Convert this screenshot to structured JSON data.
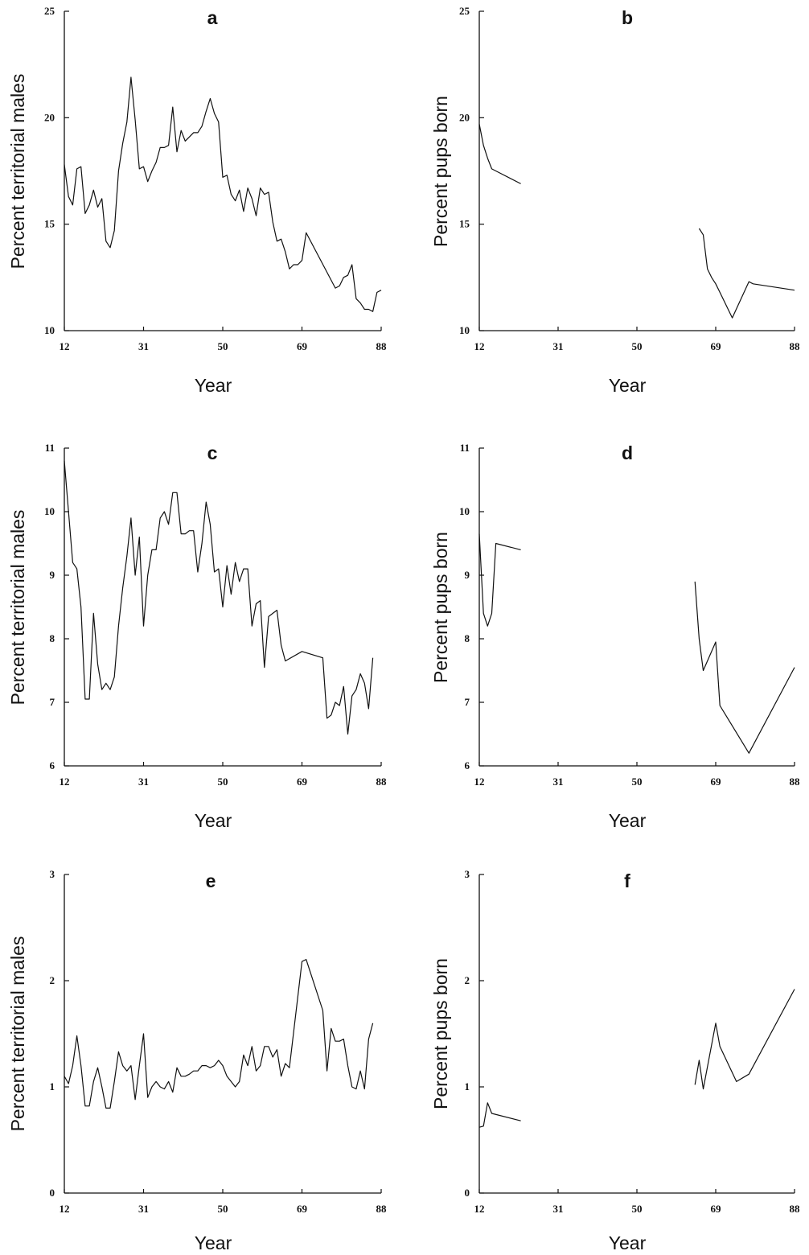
{
  "chart_data": [
    {
      "id": "a",
      "type": "line",
      "title": "a",
      "xlabel": "Year",
      "ylabel": "Percent territorial males",
      "xlim": [
        12,
        88
      ],
      "ylim": [
        10,
        25
      ],
      "xticks": [
        "12",
        "31",
        "50",
        "69",
        "88"
      ],
      "yticks": [
        "10",
        "15",
        "20",
        "25"
      ],
      "series": [
        {
          "values": [
            [
              12,
              17.8
            ],
            [
              13,
              16.3
            ],
            [
              14,
              15.9
            ],
            [
              15,
              17.6
            ],
            [
              16,
              17.7
            ],
            [
              17,
              15.5
            ],
            [
              18,
              15.9
            ],
            [
              19,
              16.6
            ],
            [
              20,
              15.8
            ],
            [
              21,
              16.2
            ],
            [
              22,
              14.2
            ],
            [
              23,
              13.9
            ],
            [
              24,
              14.7
            ],
            [
              25,
              17.5
            ],
            [
              26,
              18.8
            ],
            [
              27,
              19.8
            ],
            [
              28,
              21.9
            ],
            [
              29,
              19.9
            ],
            [
              30,
              17.6
            ],
            [
              31,
              17.7
            ],
            [
              32,
              17.0
            ],
            [
              33,
              17.5
            ],
            [
              34,
              17.9
            ],
            [
              35,
              18.6
            ],
            [
              36,
              18.6
            ],
            [
              37,
              18.7
            ],
            [
              38,
              20.5
            ],
            [
              39,
              18.4
            ],
            [
              40,
              19.4
            ],
            [
              41,
              18.9
            ],
            [
              42,
              19.1
            ],
            [
              43,
              19.3
            ],
            [
              44,
              19.3
            ],
            [
              45,
              19.6
            ],
            [
              46,
              20.3
            ],
            [
              47,
              20.9
            ],
            [
              48,
              20.2
            ],
            [
              49,
              19.8
            ],
            [
              50,
              17.2
            ],
            [
              51,
              17.3
            ],
            [
              52,
              16.4
            ],
            [
              53,
              16.1
            ],
            [
              54,
              16.6
            ],
            [
              55,
              15.6
            ],
            [
              56,
              16.7
            ],
            [
              57,
              16.2
            ],
            [
              58,
              15.4
            ],
            [
              59,
              16.7
            ],
            [
              60,
              16.4
            ],
            [
              61,
              16.5
            ],
            [
              62,
              15.1
            ],
            [
              63,
              14.2
            ],
            [
              64,
              14.3
            ],
            [
              65,
              13.7
            ],
            [
              66,
              12.9
            ],
            [
              67,
              13.1
            ],
            [
              68,
              13.1
            ],
            [
              69,
              13.3
            ],
            [
              70,
              14.6
            ],
            [
              77,
              12.0
            ],
            [
              78,
              12.1
            ],
            [
              79,
              12.5
            ],
            [
              80,
              12.6
            ],
            [
              81,
              13.1
            ],
            [
              82,
              11.5
            ],
            [
              83,
              11.3
            ],
            [
              84,
              11.0
            ],
            [
              85,
              11.0
            ],
            [
              86,
              10.9
            ],
            [
              87,
              11.8
            ],
            [
              88,
              11.9
            ]
          ]
        }
      ]
    },
    {
      "id": "b",
      "type": "line",
      "title": "b",
      "xlabel": "Year",
      "ylabel": "Percent pups born",
      "xlim": [
        12,
        88
      ],
      "ylim": [
        10,
        25
      ],
      "xticks": [
        "12",
        "31",
        "50",
        "69",
        "88"
      ],
      "yticks": [
        "10",
        "15",
        "20",
        "25"
      ],
      "series": [
        {
          "segments": [
            [
              [
                12,
                19.7
              ],
              [
                13,
                18.7
              ],
              [
                14,
                18.1
              ],
              [
                15,
                17.6
              ],
              [
                16,
                17.5
              ],
              [
                22,
                16.9
              ]
            ],
            [
              [
                65,
                14.8
              ],
              [
                66,
                14.5
              ],
              [
                67,
                12.9
              ],
              [
                68,
                12.5
              ],
              [
                69,
                12.2
              ],
              [
                70,
                11.8
              ],
              [
                73,
                10.6
              ],
              [
                77,
                12.3
              ],
              [
                78,
                12.2
              ],
              [
                88,
                11.9
              ]
            ]
          ]
        }
      ]
    },
    {
      "id": "c",
      "type": "line",
      "title": "c",
      "xlabel": "Year",
      "ylabel": "Percent territorial males",
      "xlim": [
        12,
        88
      ],
      "ylim": [
        6,
        11
      ],
      "xticks": [
        "12",
        "31",
        "50",
        "69",
        "88"
      ],
      "yticks": [
        "6",
        "7",
        "8",
        "9",
        "10",
        "11"
      ],
      "series": [
        {
          "values": [
            [
              12,
              10.8
            ],
            [
              13,
              10.0
            ],
            [
              14,
              9.2
            ],
            [
              15,
              9.1
            ],
            [
              16,
              8.5
            ],
            [
              17,
              7.05
            ],
            [
              18,
              7.05
            ],
            [
              19,
              8.4
            ],
            [
              20,
              7.6
            ],
            [
              21,
              7.2
            ],
            [
              22,
              7.3
            ],
            [
              23,
              7.2
            ],
            [
              24,
              7.4
            ],
            [
              25,
              8.2
            ],
            [
              26,
              8.8
            ],
            [
              27,
              9.3
            ],
            [
              28,
              9.9
            ],
            [
              29,
              9.0
            ],
            [
              30,
              9.6
            ],
            [
              31,
              8.2
            ],
            [
              32,
              9.0
            ],
            [
              33,
              9.4
            ],
            [
              34,
              9.4
            ],
            [
              35,
              9.9
            ],
            [
              36,
              10.0
            ],
            [
              37,
              9.8
            ],
            [
              38,
              10.3
            ],
            [
              39,
              10.3
            ],
            [
              40,
              9.65
            ],
            [
              41,
              9.65
            ],
            [
              42,
              9.7
            ],
            [
              43,
              9.7
            ],
            [
              44,
              9.05
            ],
            [
              45,
              9.5
            ],
            [
              46,
              10.15
            ],
            [
              47,
              9.8
            ],
            [
              48,
              9.05
            ],
            [
              49,
              9.1
            ],
            [
              50,
              8.5
            ],
            [
              51,
              9.15
            ],
            [
              52,
              8.7
            ],
            [
              53,
              9.2
            ],
            [
              54,
              8.9
            ],
            [
              55,
              9.1
            ],
            [
              56,
              9.1
            ],
            [
              57,
              8.2
            ],
            [
              58,
              8.55
            ],
            [
              59,
              8.6
            ],
            [
              60,
              7.55
            ],
            [
              61,
              8.35
            ],
            [
              62,
              8.4
            ],
            [
              63,
              8.45
            ],
            [
              64,
              7.9
            ],
            [
              65,
              7.65
            ],
            [
              69,
              7.8
            ],
            [
              74,
              7.7
            ],
            [
              75,
              6.75
            ],
            [
              76,
              6.8
            ],
            [
              77,
              7.0
            ],
            [
              78,
              6.95
            ],
            [
              79,
              7.25
            ],
            [
              80,
              6.5
            ],
            [
              81,
              7.1
            ],
            [
              82,
              7.2
            ],
            [
              83,
              7.45
            ],
            [
              84,
              7.3
            ],
            [
              85,
              6.9
            ],
            [
              86,
              7.7
            ]
          ]
        }
      ]
    },
    {
      "id": "d",
      "type": "line",
      "title": "d",
      "xlabel": "Year",
      "ylabel": "Percent pups born",
      "xlim": [
        12,
        88
      ],
      "ylim": [
        6,
        11
      ],
      "xticks": [
        "12",
        "31",
        "50",
        "69",
        "88"
      ],
      "yticks": [
        "6",
        "7",
        "8",
        "9",
        "10",
        "11"
      ],
      "series": [
        {
          "segments": [
            [
              [
                12,
                9.65
              ],
              [
                13,
                8.4
              ],
              [
                14,
                8.2
              ],
              [
                15,
                8.4
              ],
              [
                16,
                9.5
              ],
              [
                22,
                9.4
              ]
            ],
            [
              [
                64,
                8.9
              ],
              [
                65,
                8.0
              ],
              [
                66,
                7.5
              ],
              [
                69,
                7.95
              ],
              [
                70,
                6.95
              ],
              [
                77,
                6.2
              ],
              [
                88,
                7.55
              ]
            ]
          ]
        }
      ]
    },
    {
      "id": "e",
      "type": "line",
      "title": "e",
      "xlabel": "Year",
      "ylabel": "Percent territorial males",
      "xlim": [
        12,
        88
      ],
      "ylim": [
        0,
        3
      ],
      "xticks": [
        "12",
        "31",
        "50",
        "69",
        "88"
      ],
      "yticks": [
        "0",
        "1",
        "2",
        "3"
      ],
      "series": [
        {
          "values": [
            [
              12,
              1.1
            ],
            [
              13,
              1.03
            ],
            [
              14,
              1.2
            ],
            [
              15,
              1.48
            ],
            [
              16,
              1.2
            ],
            [
              17,
              0.82
            ],
            [
              18,
              0.82
            ],
            [
              19,
              1.05
            ],
            [
              20,
              1.18
            ],
            [
              21,
              1.0
            ],
            [
              22,
              0.8
            ],
            [
              23,
              0.8
            ],
            [
              24,
              1.05
            ],
            [
              25,
              1.33
            ],
            [
              26,
              1.2
            ],
            [
              27,
              1.15
            ],
            [
              28,
              1.2
            ],
            [
              29,
              0.88
            ],
            [
              30,
              1.2
            ],
            [
              31,
              1.5
            ],
            [
              32,
              0.9
            ],
            [
              33,
              1.0
            ],
            [
              34,
              1.05
            ],
            [
              35,
              1.0
            ],
            [
              36,
              0.98
            ],
            [
              37,
              1.05
            ],
            [
              38,
              0.95
            ],
            [
              39,
              1.18
            ],
            [
              40,
              1.1
            ],
            [
              41,
              1.1
            ],
            [
              42,
              1.12
            ],
            [
              43,
              1.15
            ],
            [
              44,
              1.15
            ],
            [
              45,
              1.2
            ],
            [
              46,
              1.2
            ],
            [
              47,
              1.18
            ],
            [
              48,
              1.2
            ],
            [
              49,
              1.25
            ],
            [
              50,
              1.2
            ],
            [
              51,
              1.1
            ],
            [
              52,
              1.05
            ],
            [
              53,
              1.0
            ],
            [
              54,
              1.05
            ],
            [
              55,
              1.3
            ],
            [
              56,
              1.2
            ],
            [
              57,
              1.38
            ],
            [
              58,
              1.15
            ],
            [
              59,
              1.2
            ],
            [
              60,
              1.38
            ],
            [
              61,
              1.38
            ],
            [
              62,
              1.28
            ],
            [
              63,
              1.35
            ],
            [
              64,
              1.1
            ],
            [
              65,
              1.22
            ],
            [
              66,
              1.18
            ],
            [
              69,
              2.18
            ],
            [
              70,
              2.2
            ],
            [
              74,
              1.72
            ],
            [
              75,
              1.15
            ],
            [
              76,
              1.55
            ],
            [
              77,
              1.43
            ],
            [
              78,
              1.43
            ],
            [
              79,
              1.45
            ],
            [
              80,
              1.2
            ],
            [
              81,
              1.0
            ],
            [
              82,
              0.98
            ],
            [
              83,
              1.15
            ],
            [
              84,
              0.98
            ],
            [
              85,
              1.45
            ],
            [
              86,
              1.6
            ]
          ]
        }
      ]
    },
    {
      "id": "f",
      "type": "line",
      "title": "f",
      "xlabel": "Year",
      "ylabel": "Percent pups born",
      "xlim": [
        12,
        88
      ],
      "ylim": [
        0,
        3
      ],
      "xticks": [
        "12",
        "31",
        "50",
        "69",
        "88"
      ],
      "yticks": [
        "0",
        "1",
        "2",
        "3"
      ],
      "series": [
        {
          "segments": [
            [
              [
                12,
                0.62
              ],
              [
                13,
                0.63
              ],
              [
                14,
                0.85
              ],
              [
                15,
                0.75
              ],
              [
                22,
                0.68
              ]
            ],
            [
              [
                64,
                1.02
              ],
              [
                65,
                1.25
              ],
              [
                66,
                0.98
              ],
              [
                69,
                1.6
              ],
              [
                70,
                1.38
              ],
              [
                74,
                1.05
              ],
              [
                77,
                1.12
              ],
              [
                88,
                1.92
              ]
            ]
          ]
        }
      ]
    }
  ]
}
